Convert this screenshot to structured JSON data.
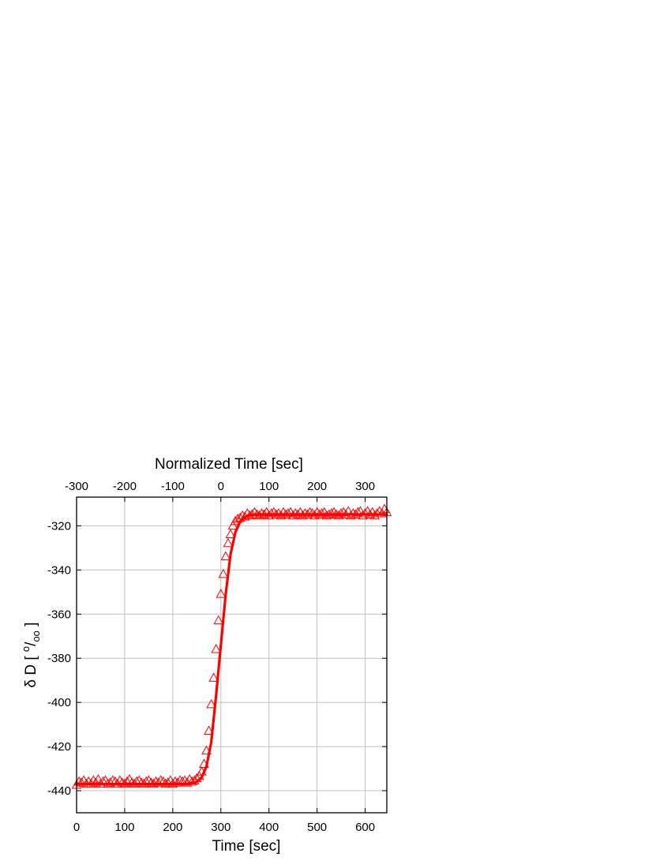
{
  "chart_data": {
    "type": "line",
    "top_axis": {
      "label": "Normalized Time [sec]",
      "range": [
        -300,
        345
      ],
      "ticks": [
        -300,
        -200,
        -100,
        0,
        100,
        200,
        300
      ],
      "tick_labels": [
        "-300",
        "-200",
        "-100",
        "0",
        "100",
        "200",
        "300"
      ]
    },
    "x_axis": {
      "label": "Time [sec]",
      "range": [
        0,
        645
      ],
      "ticks": [
        0,
        100,
        200,
        300,
        400,
        500,
        600
      ],
      "tick_labels": [
        "0",
        "100",
        "200",
        "300",
        "400",
        "500",
        "600"
      ]
    },
    "y_axis": {
      "label_main": "δ D [ ",
      "label_sup": "o",
      "label_slash": "/",
      "label_sub": "oo",
      "label_end": " ]",
      "range": [
        -450,
        -307
      ],
      "ticks": [
        -440,
        -420,
        -400,
        -380,
        -360,
        -340,
        -320
      ],
      "tick_labels": [
        "-440",
        "-420",
        "-400",
        "-380",
        "-360",
        "-340",
        "-320"
      ]
    },
    "grid": true,
    "colors": {
      "series": "#ff0000",
      "grid": "#c0c0c0",
      "axis": "#000000"
    },
    "series": [
      {
        "kind": "fit-line",
        "marker": "none",
        "x": [
          0,
          50,
          100,
          150,
          200,
          230,
          250,
          260,
          270,
          280,
          290,
          300,
          310,
          320,
          330,
          340,
          350,
          360,
          380,
          400,
          450,
          500,
          550,
          600,
          645
        ],
        "y": [
          -437,
          -437,
          -437,
          -437,
          -437,
          -437,
          -436,
          -434,
          -429,
          -418,
          -397,
          -374,
          -351,
          -333,
          -323,
          -318,
          -316,
          -315,
          -314.8,
          -314.8,
          -314.8,
          -314.8,
          -314.8,
          -314.8,
          -314.8
        ]
      },
      {
        "kind": "measured",
        "marker": "open-triangle",
        "x": [
          0,
          5,
          10,
          15,
          20,
          25,
          30,
          35,
          40,
          45,
          50,
          55,
          60,
          65,
          70,
          75,
          80,
          85,
          90,
          95,
          100,
          105,
          110,
          115,
          120,
          125,
          130,
          135,
          140,
          145,
          150,
          155,
          160,
          165,
          170,
          175,
          180,
          185,
          190,
          195,
          200,
          205,
          210,
          215,
          220,
          225,
          230,
          235,
          240,
          245,
          250,
          255,
          260,
          265,
          270,
          275,
          280,
          285,
          290,
          295,
          300,
          305,
          310,
          315,
          320,
          325,
          330,
          335,
          340,
          345,
          350,
          355,
          360,
          365,
          370,
          375,
          380,
          385,
          390,
          395,
          400,
          405,
          410,
          415,
          420,
          425,
          430,
          435,
          440,
          445,
          450,
          455,
          460,
          465,
          470,
          475,
          480,
          485,
          490,
          495,
          500,
          505,
          510,
          515,
          520,
          525,
          530,
          535,
          540,
          545,
          550,
          555,
          560,
          565,
          570,
          575,
          580,
          585,
          590,
          595,
          600,
          605,
          610,
          615,
          620,
          625,
          630,
          635,
          640,
          645
        ],
        "y": [
          -437.5,
          -436,
          -436.5,
          -435.5,
          -437,
          -436,
          -437,
          -435.5,
          -436.5,
          -435,
          -437,
          -436,
          -435.5,
          -437,
          -436.5,
          -435.5,
          -436,
          -437,
          -435.5,
          -436.5,
          -437,
          -436,
          -435,
          -436.5,
          -437,
          -436,
          -435.5,
          -436.5,
          -437,
          -436,
          -435.5,
          -436.5,
          -437,
          -436,
          -436.5,
          -435.5,
          -436,
          -437,
          -436.5,
          -435.5,
          -437,
          -436,
          -436.5,
          -435.5,
          -436,
          -435.5,
          -436.5,
          -435,
          -436,
          -435.5,
          -434.5,
          -433.5,
          -431.5,
          -428,
          -422,
          -413,
          -401,
          -389,
          -376,
          -363,
          -351,
          -342,
          -334,
          -328,
          -324,
          -320,
          -318,
          -317,
          -316.5,
          -315.5,
          -316,
          -314.5,
          -315.5,
          -315,
          -314,
          -315,
          -315.5,
          -314.5,
          -315,
          -314,
          -315.5,
          -314.5,
          -314,
          -315,
          -314.5,
          -315.5,
          -314,
          -315,
          -314.5,
          -314,
          -315.5,
          -314.5,
          -315,
          -314,
          -315.5,
          -314.5,
          -315,
          -314,
          -314.5,
          -315.5,
          -314,
          -315,
          -314.5,
          -314,
          -315.5,
          -315,
          -314.5,
          -314,
          -315,
          -315.5,
          -314.5,
          -314,
          -315,
          -313.5,
          -315.5,
          -314.5,
          -315,
          -314,
          -313.5,
          -315.5,
          -314.5,
          -313.5,
          -315,
          -314,
          -315.5,
          -314.5,
          -313.5,
          -314.5,
          -312.5,
          -314
        ]
      }
    ]
  }
}
